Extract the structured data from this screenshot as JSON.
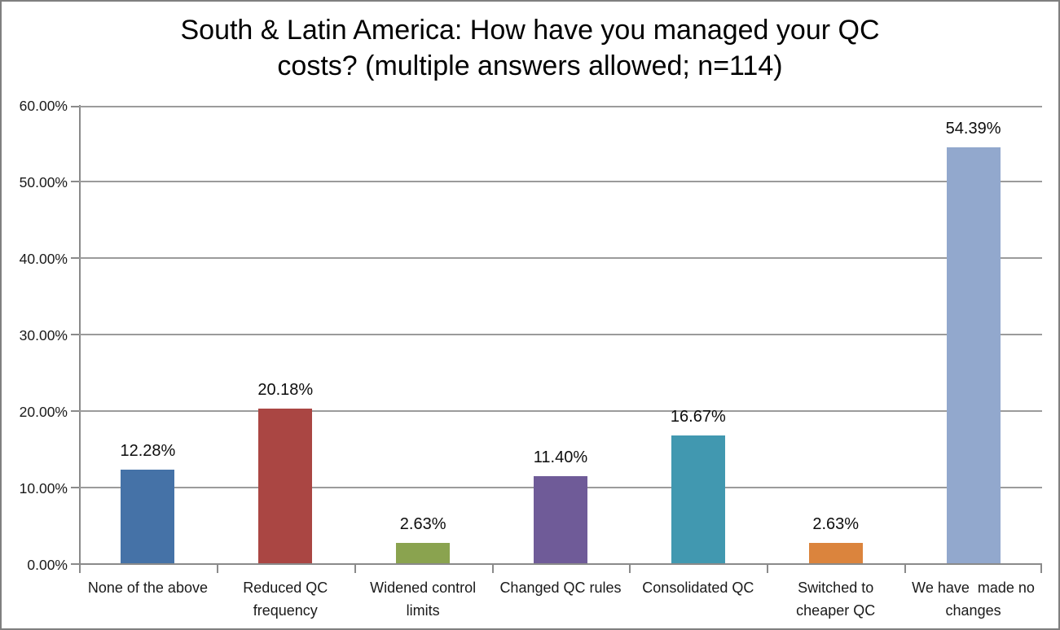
{
  "chart_data": {
    "type": "bar",
    "title": "South & Latin America: How have you managed your QC costs? (multiple answers allowed; n=114)",
    "title_lines": [
      "South & Latin America: How have you managed your QC",
      "costs? (multiple answers allowed; n=114)"
    ],
    "categories": [
      "None of the above",
      "Reduced QC frequency",
      "Widened control limits",
      "Changed QC rules",
      "Consolidated QC",
      "Switched to cheaper QC",
      "We have made no changes"
    ],
    "display_categories": [
      "None of the above",
      "Reduced QC\nfrequency",
      "Widened control\nlimits",
      "Changed QC rules",
      "Consolidated QC",
      "Switched to\ncheaper QC",
      "We have  made no\nchanges"
    ],
    "values": [
      12.28,
      20.18,
      2.63,
      11.4,
      16.67,
      2.63,
      54.39
    ],
    "value_labels": [
      "12.28%",
      "20.18%",
      "2.63%",
      "11.40%",
      "16.67%",
      "2.63%",
      "54.39%"
    ],
    "bar_colors": [
      "#4572A7",
      "#AA4643",
      "#8AA34F",
      "#6F5B98",
      "#4198B0",
      "#DB843D",
      "#92A8CD"
    ],
    "ylim": [
      0,
      60
    ],
    "y_ticks": [
      "0.00%",
      "10.00%",
      "20.00%",
      "30.00%",
      "40.00%",
      "50.00%",
      "60.00%"
    ],
    "xlabel": "",
    "ylabel": "",
    "grid": "horizontal",
    "legend": "none"
  },
  "colors": {
    "axis": "#8A8A8A",
    "gridline": "#9B9B9B",
    "text": "#1A1A1A",
    "title_text": "#000000",
    "frame_border": "#7F7F7F",
    "background": "#FFFFFF"
  }
}
